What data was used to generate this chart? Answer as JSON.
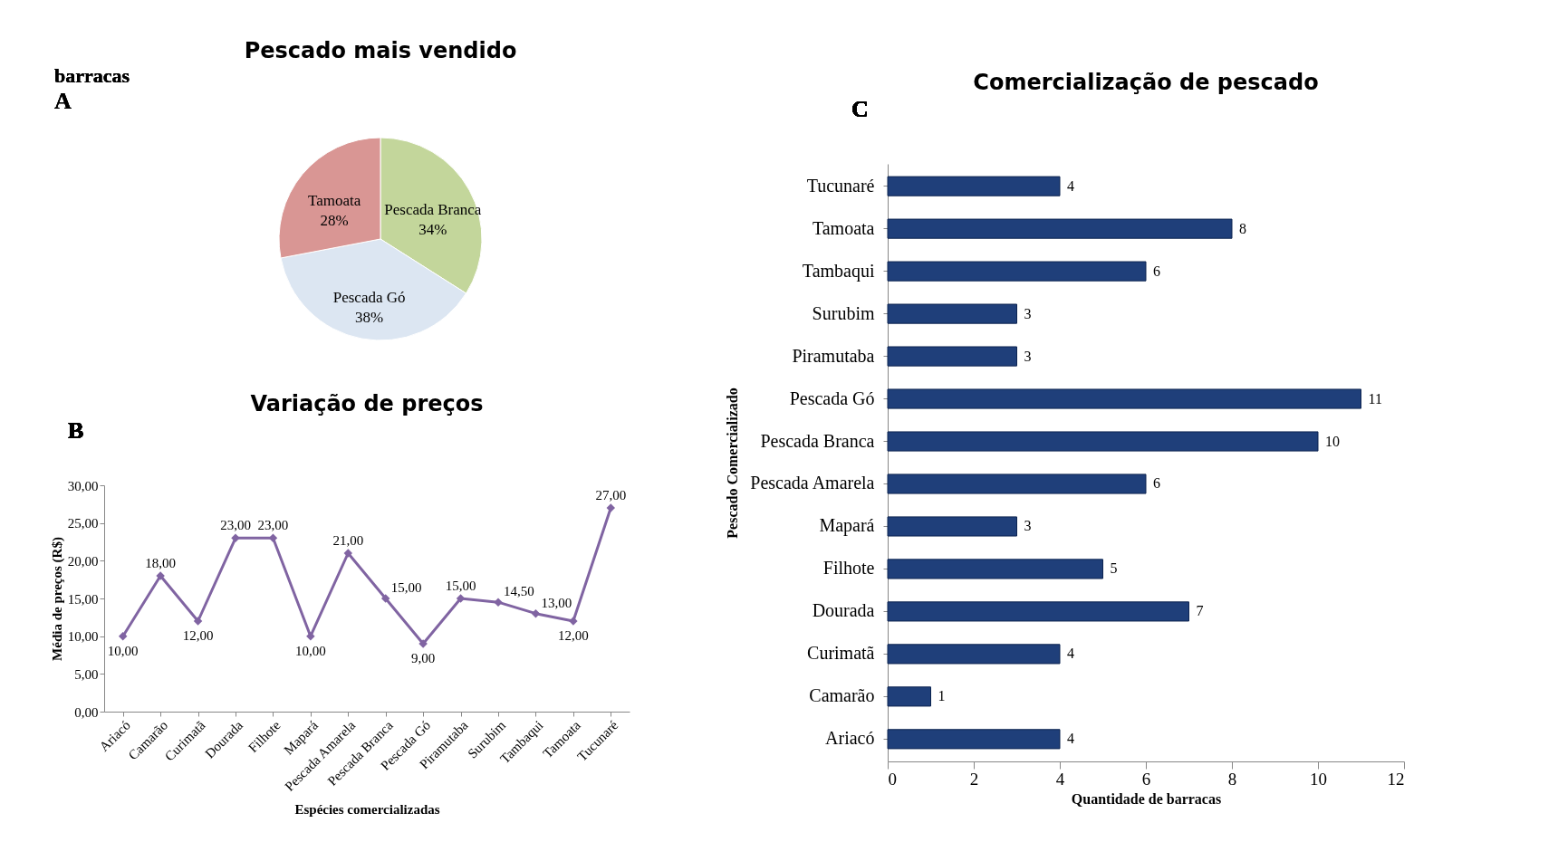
{
  "chart_data": [
    {
      "type": "pie",
      "title": "Pescado mais vendido",
      "categories": [
        "Pescada Branca",
        "Pescada Gó",
        "Tamoata"
      ],
      "values": [
        34,
        38,
        28
      ],
      "colors": [
        "#c3d69b",
        "#dce6f2",
        "#d99694"
      ],
      "value_labels": [
        "34%",
        "38%",
        "28%"
      ],
      "legend": false,
      "annotations": [
        "barracas",
        "A"
      ]
    },
    {
      "type": "line",
      "title": "Variação de preços",
      "xlabel": "Espécies comercializadas",
      "ylabel": "Média de preços (R$)",
      "categories": [
        "Ariacó",
        "Camarão",
        "Curimatã",
        "Dourada",
        "Filhote",
        "Mapará",
        "Pescada Amarela",
        "Pescada Branca",
        "Pescada Gó",
        "Piramutaba",
        "Surubim",
        "Tambaqui",
        "Tamoata",
        "Tucunaré"
      ],
      "series": [
        {
          "color": "#8064a2",
          "values": [
            10,
            18,
            12,
            23,
            23,
            10,
            21,
            15,
            9,
            15,
            14.5,
            13,
            12,
            27
          ],
          "value_labels": [
            "10,00",
            "18,00",
            "12,00",
            "23,00",
            "23,00",
            "10,00",
            "21,00",
            "15,00",
            "9,00",
            "15,00",
            "14,50",
            "13,00",
            "12,00",
            "27,00"
          ]
        }
      ],
      "ylim": [
        0,
        30
      ],
      "yticks": [
        {
          "value": 0,
          "label": "0,00"
        },
        {
          "value": 5,
          "label": "5,00"
        },
        {
          "value": 10,
          "label": "10,00"
        },
        {
          "value": 15,
          "label": "15,00"
        },
        {
          "value": 20,
          "label": "20,00"
        },
        {
          "value": 25,
          "label": "25,00"
        },
        {
          "value": 30,
          "label": "30,00"
        }
      ],
      "marker": "diamond",
      "grid": false,
      "legend": false,
      "annotations": [
        "B"
      ]
    },
    {
      "type": "bar",
      "orientation": "horizontal",
      "title": "Comercialização de pescado",
      "xlabel": "Quantidade de barracas",
      "ylabel": "Pescado Comercializado",
      "categories": [
        "Tucunaré",
        "Tamoata",
        "Tambaqui",
        "Surubim",
        "Piramutaba",
        "Pescada Gó",
        "Pescada Branca",
        "Pescada Amarela",
        "Mapará",
        "Filhote",
        "Dourada",
        "Curimatã",
        "Camarão",
        "Ariacó"
      ],
      "values": [
        4,
        8,
        6,
        3,
        3,
        11,
        10,
        6,
        3,
        5,
        7,
        4,
        1,
        4
      ],
      "color": "#1f3f7a",
      "xlim": [
        0,
        12
      ],
      "xticks": [
        0,
        2,
        4,
        6,
        8,
        10,
        12
      ],
      "data_labels": true,
      "grid": false,
      "legend": false,
      "annotations": [
        "C"
      ]
    }
  ]
}
